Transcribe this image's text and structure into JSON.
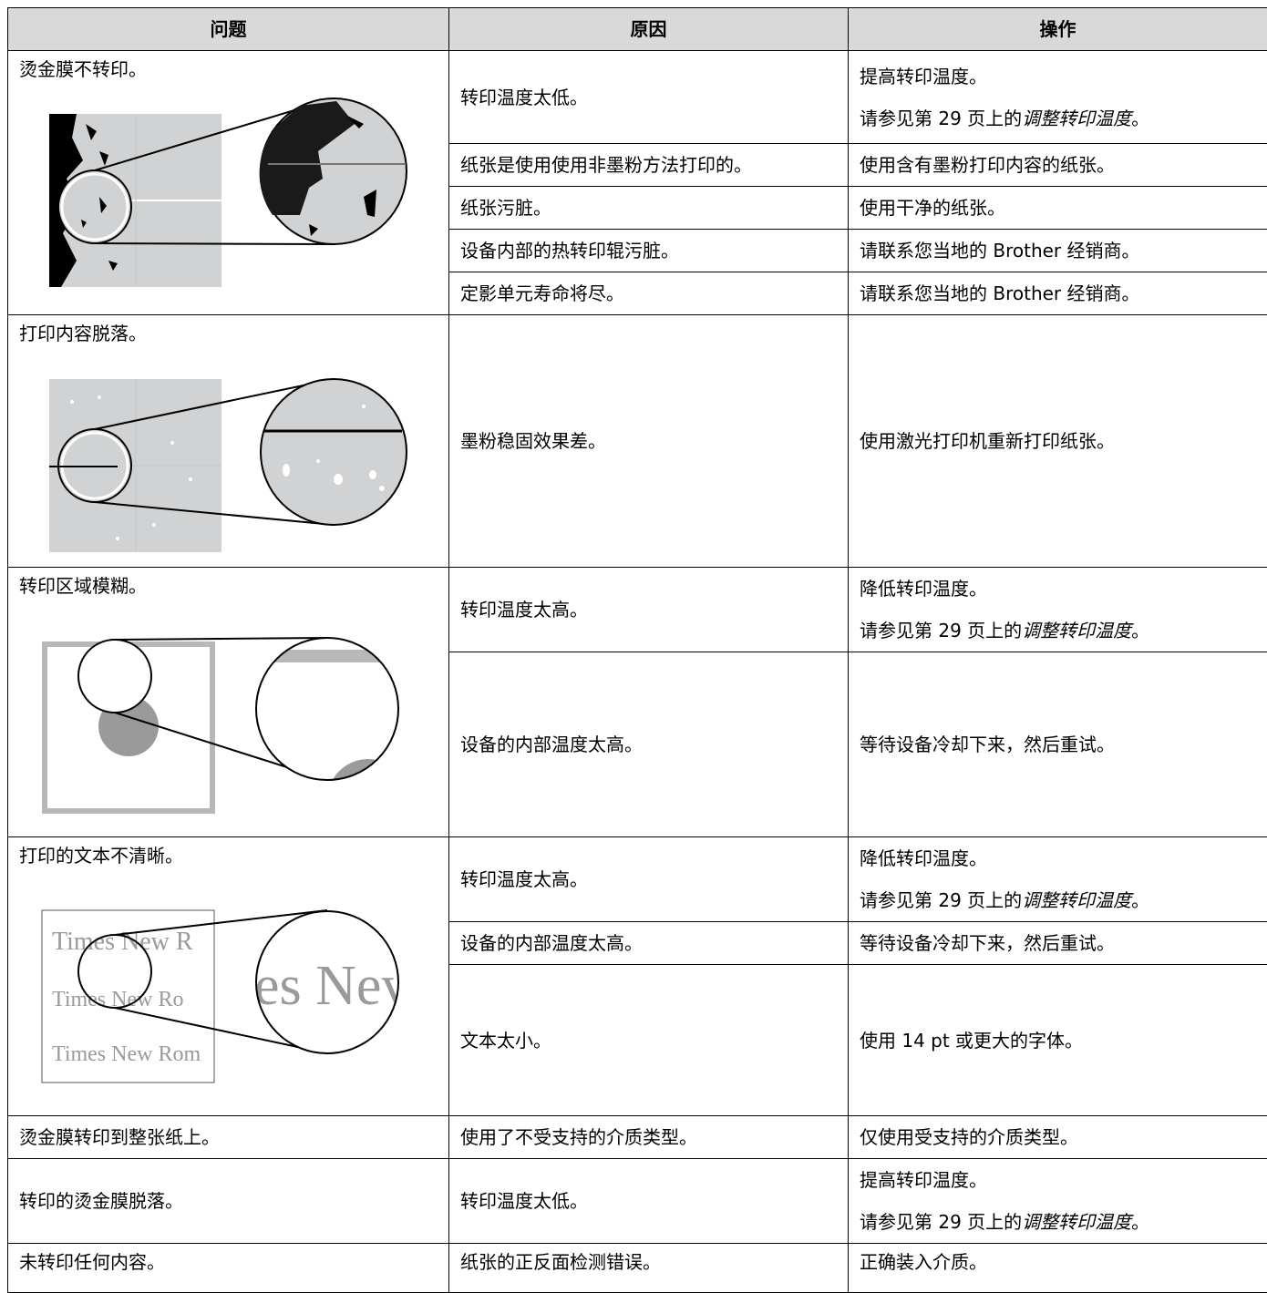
{
  "table": {
    "header": [
      "问题",
      "原因",
      "操作"
    ],
    "rows": [
      {
        "problem": "烫金膜不转印。",
        "causes": [
          {
            "cause": "转印温度太低。",
            "action": [
              "提高转印温度。"
            ],
            "ref": {
              "prefix": "请参见第 29 页上的",
              "title": "调整转印温度",
              "suffix": "。"
            }
          },
          {
            "cause": "纸张是使用使用非墨粉方法打印的。",
            "action": [
              "使用含有墨粉打印内容的纸张。"
            ]
          },
          {
            "cause": "纸张污脏。",
            "action": [
              "使用干净的纸张。"
            ]
          },
          {
            "cause": "设备内部的热转印辊污脏。",
            "action": [
              "请联系您当地的 Brother 经销商。"
            ]
          },
          {
            "cause": "定影单元寿命将尽。",
            "action": [
              "请联系您当地的 Brother 经销商。"
            ]
          }
        ]
      },
      {
        "problem": "打印内容脱落。",
        "causes": [
          {
            "cause": "墨粉稳固效果差。",
            "action": [
              "使用激光打印机重新打印纸张。"
            ]
          }
        ]
      },
      {
        "problem": "转印区域模糊。",
        "causes": [
          {
            "cause": "转印温度太高。",
            "action": [
              "降低转印温度。"
            ],
            "ref": {
              "prefix": "请参见第 29 页上的",
              "title": "调整转印温度",
              "suffix": "。"
            }
          },
          {
            "cause": "设备的内部温度太高。",
            "action": [
              "等待设备冷却下来，然后重试。"
            ]
          }
        ]
      },
      {
        "problem": "打印的文本不清晰。",
        "sample": [
          "Times New R",
          "Times New Ro",
          "Times New Rom",
          "es Nev"
        ],
        "causes": [
          {
            "cause": "转印温度太高。",
            "action": [
              "降低转印温度。"
            ],
            "ref": {
              "prefix": "请参见第 29 页上的",
              "title": "调整转印温度",
              "suffix": "。"
            }
          },
          {
            "cause": "设备的内部温度太高。",
            "action": [
              "等待设备冷却下来，然后重试。"
            ]
          },
          {
            "cause": "文本太小。",
            "action": [
              "使用 14 pt 或更大的字体。"
            ]
          }
        ]
      },
      {
        "problem": "烫金膜转印到整张纸上。",
        "causes": [
          {
            "cause": "使用了不受支持的介质类型。",
            "action": [
              "仅使用受支持的介质类型。"
            ]
          }
        ]
      },
      {
        "problem": "转印的烫金膜脱落。",
        "causes": [
          {
            "cause": "转印温度太低。",
            "action": [
              "提高转印温度。"
            ],
            "ref": {
              "prefix": "请参见第 29 页上的",
              "title": "调整转印温度",
              "suffix": "。"
            }
          }
        ]
      },
      {
        "problem": "未转印任何内容。",
        "causes": [
          {
            "cause": "纸张的正反面检测错误。",
            "action": [
              "正确装入介质。"
            ]
          }
        ]
      }
    ]
  }
}
